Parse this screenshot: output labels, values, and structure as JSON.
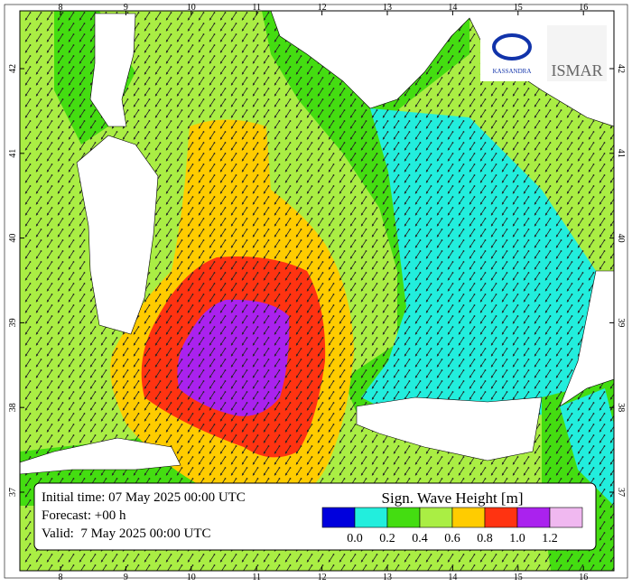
{
  "map": {
    "lon_labels": [
      8,
      9,
      10,
      11,
      12,
      13,
      14,
      15,
      16
    ],
    "lat_labels": [
      42,
      41,
      40,
      39,
      38,
      37
    ],
    "logos": [
      "KASSANDRA",
      "ISMAR"
    ],
    "info": {
      "lines": [
        "Initial time: 07 May 2025 00:00 UTC",
        "Forecast: +00 h",
        "Valid:  7 May 2025 00:00 UTC"
      ]
    },
    "legend": {
      "title": "Sign. Wave Height [m]",
      "colors": [
        "#0000dd",
        "#22eedd",
        "#44dd11",
        "#aaee44",
        "#ffcc00",
        "#ff3311",
        "#aa22ee",
        "#f0b8f0"
      ],
      "labels": [
        "0.0",
        "0.2",
        "0.4",
        "0.6",
        "0.8",
        "1.0",
        "1.2"
      ]
    }
  }
}
